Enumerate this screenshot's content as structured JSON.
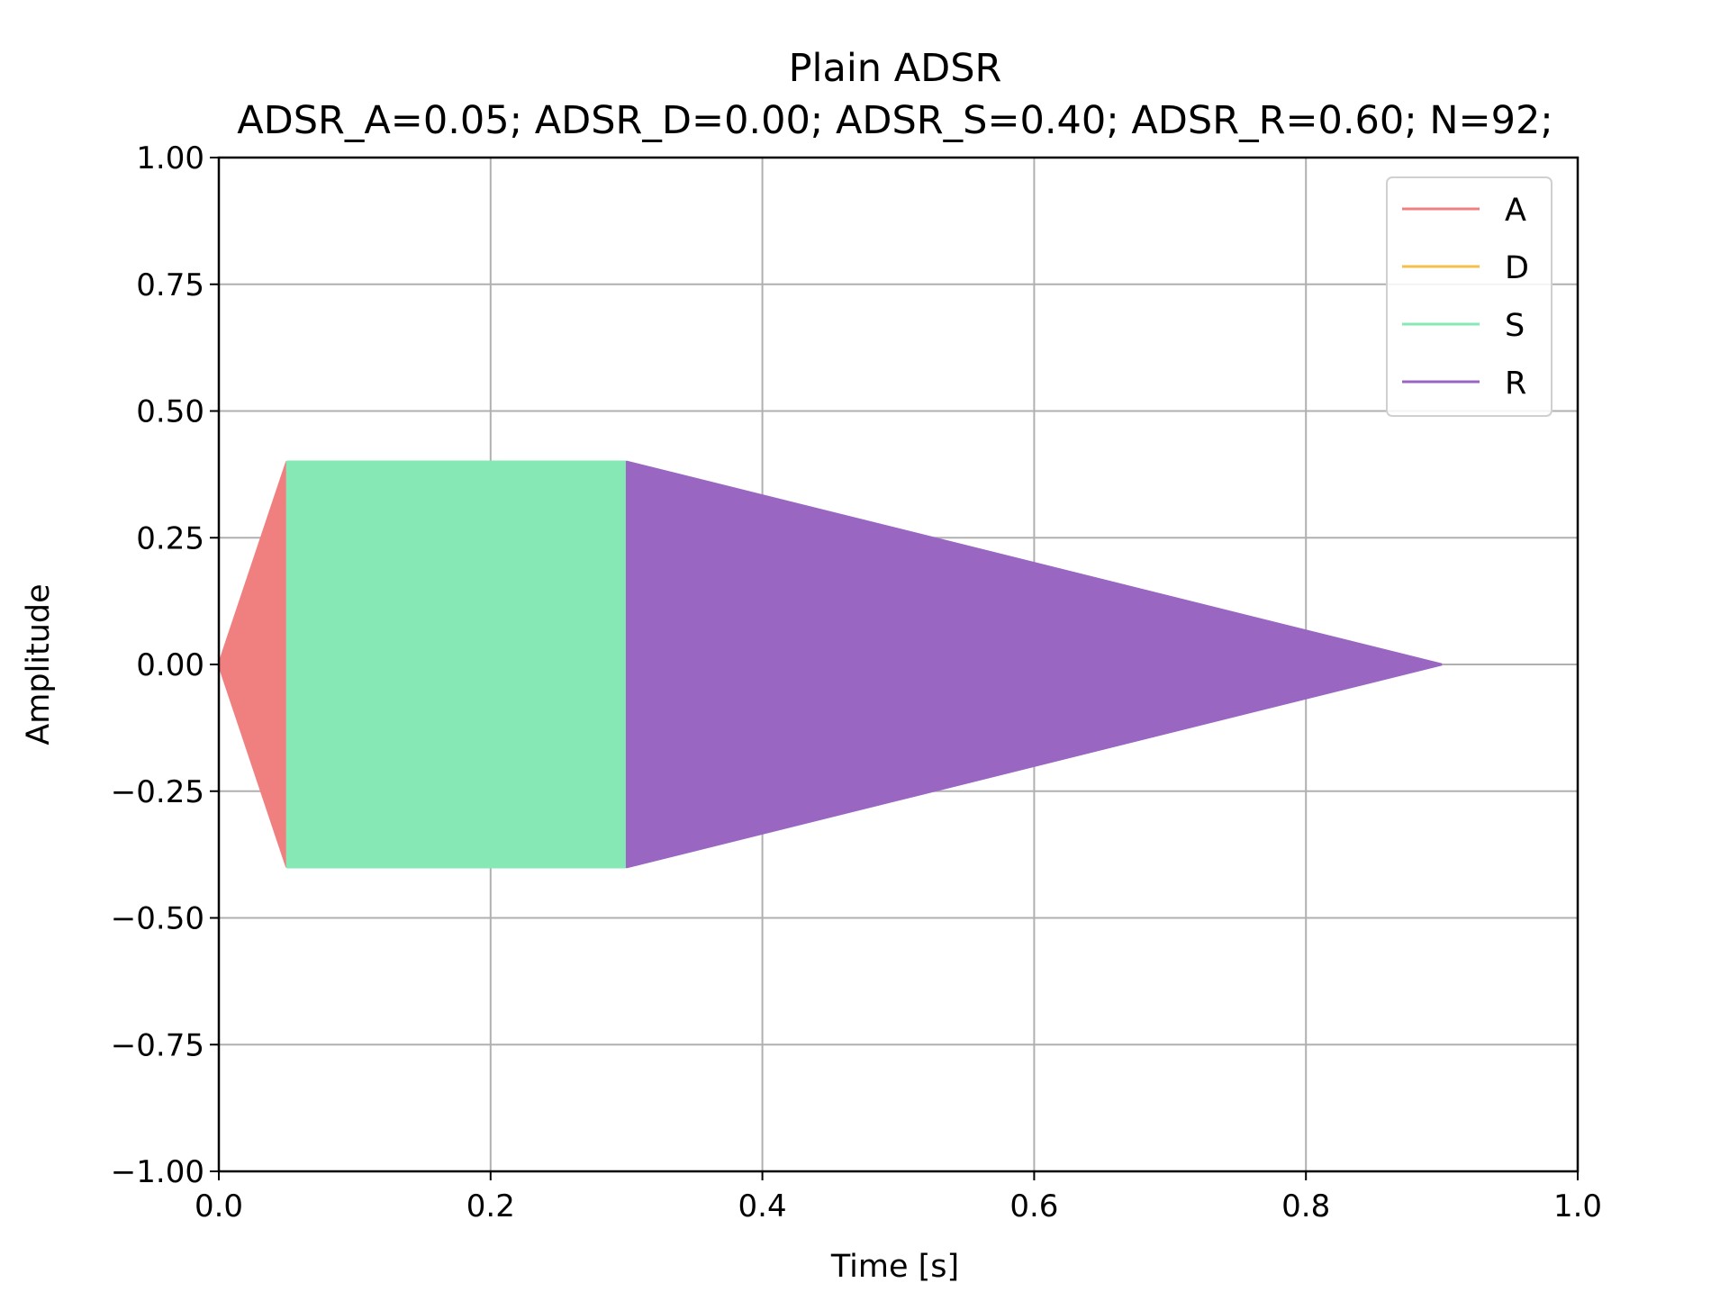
{
  "chart_data": {
    "type": "area",
    "title": "Plain ADSR",
    "subtitle": "ADSR_A=0.05; ADSR_D=0.00; ADSR_S=0.40; ADSR_R=0.60; N=92;",
    "xlabel": "Time [s]",
    "ylabel": "Amplitude",
    "xlim": [
      0,
      1
    ],
    "ylim": [
      -1,
      1
    ],
    "xticks": [
      "0.0",
      "0.2",
      "0.4",
      "0.6",
      "0.8",
      "1.0"
    ],
    "yticks": [
      "1.00",
      "0.75",
      "0.50",
      "0.25",
      "0.00",
      "−0.25",
      "−0.50",
      "−0.75",
      "−1.00"
    ],
    "xtick_values": [
      0,
      0.2,
      0.4,
      0.6,
      0.8,
      1.0
    ],
    "ytick_values": [
      1,
      0.75,
      0.5,
      0.25,
      0,
      -0.25,
      -0.5,
      -0.75,
      -1
    ],
    "grid": true,
    "legend_position": "top-right",
    "series": [
      {
        "name": "A",
        "color": "#f08080",
        "x": [
          0.0,
          0.05
        ],
        "y": [
          0.0,
          0.4
        ]
      },
      {
        "name": "D",
        "color": "#f5c04a",
        "x": [
          0.05,
          0.05
        ],
        "y": [
          0.4,
          0.4
        ]
      },
      {
        "name": "S",
        "color": "#86e8b4",
        "x": [
          0.05,
          0.3
        ],
        "y": [
          0.4,
          0.4
        ]
      },
      {
        "name": "R",
        "color": "#9966c2",
        "x": [
          0.3,
          0.9
        ],
        "y": [
          0.4,
          0.0
        ]
      }
    ]
  }
}
